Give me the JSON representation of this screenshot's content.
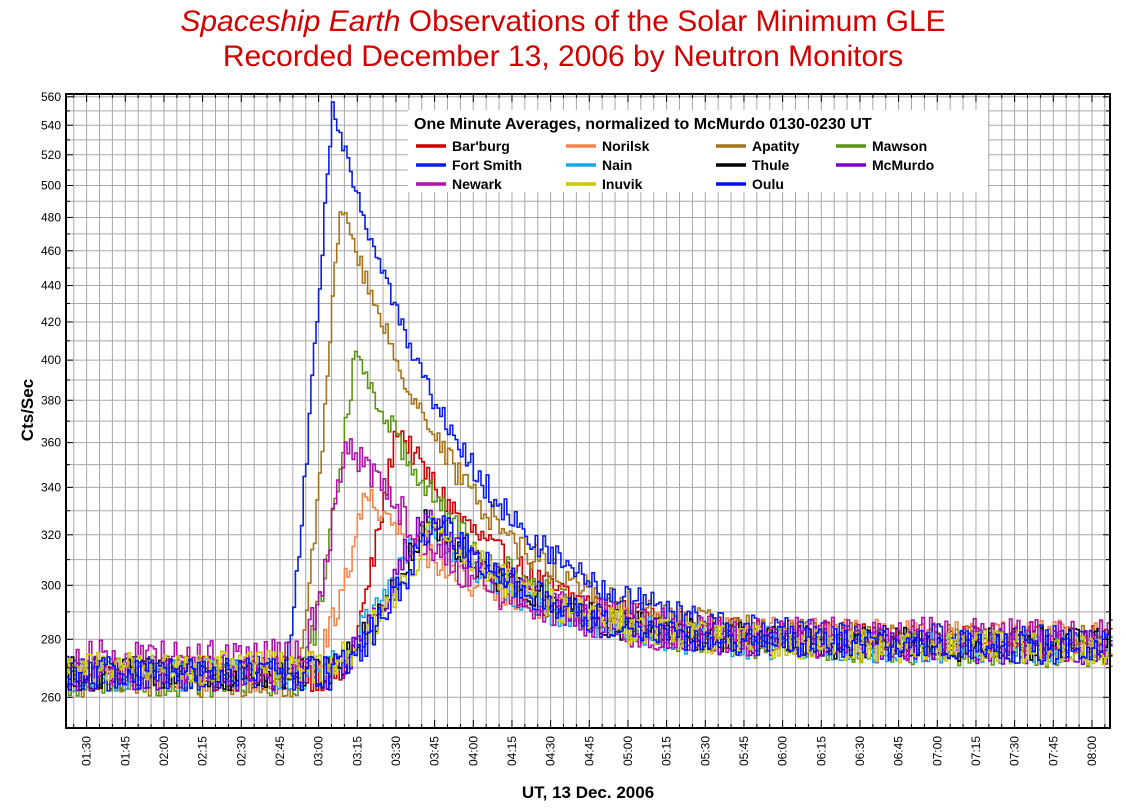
{
  "title": {
    "line1_italic": "Spaceship Earth",
    "line1_rest": " Observations of the Solar Minimum GLE",
    "line2": "Recorded December 13, 2006 by Neutron Monitors"
  },
  "chart_data": {
    "type": "line",
    "title": "Spaceship Earth Observations of the Solar Minimum GLE Recorded December 13, 2006 by Neutron Monitors",
    "xlabel": "UT, 13 Dec. 2006",
    "ylabel": "Cts/Sec",
    "xlim": [
      "01:22",
      "08:07"
    ],
    "ylim": [
      250,
      562
    ],
    "y_scale": "log",
    "grid": true,
    "legend_title": "One Minute Averages, normalized to McMurdo 0130-0230 UT",
    "legend_placement": "top-center",
    "x_ticks": [
      "01:30",
      "01:45",
      "02:00",
      "02:15",
      "02:30",
      "02:45",
      "03:00",
      "03:15",
      "03:30",
      "03:45",
      "04:00",
      "04:15",
      "04:30",
      "04:45",
      "05:00",
      "05:15",
      "05:30",
      "05:45",
      "06:00",
      "06:15",
      "06:30",
      "06:45",
      "07:00",
      "07:15",
      "07:30",
      "07:45",
      "08:00"
    ],
    "y_ticks": [
      260,
      280,
      300,
      320,
      340,
      360,
      380,
      400,
      420,
      440,
      460,
      480,
      500,
      520,
      540,
      560
    ],
    "series": [
      {
        "name": "Bar'burg",
        "color": "#cc0000",
        "baseline": 268,
        "onset": "03:08",
        "peak_time": "03:30",
        "peak": 368,
        "late": 279,
        "noise": 6
      },
      {
        "name": "Norilsk",
        "color": "#f5834a",
        "baseline": 268,
        "onset": "02:55",
        "peak_time": "03:18",
        "peak": 338,
        "late": 281,
        "noise": 6
      },
      {
        "name": "Apatity",
        "color": "#a8741a",
        "baseline": 266,
        "onset": "02:51",
        "peak_time": "03:08",
        "peak": 489,
        "late": 279,
        "noise": 6
      },
      {
        "name": "Mawson",
        "color": "#5c9416",
        "baseline": 266,
        "onset": "02:52",
        "peak_time": "03:14",
        "peak": 405,
        "late": 276,
        "noise": 6
      },
      {
        "name": "Fort Smith",
        "color": "#0a1ee0",
        "baseline": 268,
        "onset": "02:46",
        "peak_time": "03:05",
        "peak": 552,
        "late": 279,
        "noise": 6
      },
      {
        "name": "Nain",
        "color": "#1aa6e8",
        "baseline": 268,
        "onset": "02:57",
        "peak_time": "03:40",
        "peak": 326,
        "late": 277,
        "noise": 6
      },
      {
        "name": "Thule",
        "color": "#000000",
        "baseline": 268,
        "onset": "03:02",
        "peak_time": "03:42",
        "peak": 328,
        "late": 278,
        "noise": 6
      },
      {
        "name": "McMurdo",
        "color": "#7a00c8",
        "baseline": 268,
        "onset": "03:03",
        "peak_time": "03:40",
        "peak": 330,
        "late": 277,
        "noise": 6
      },
      {
        "name": "Newark",
        "color": "#b010a8",
        "baseline": 272,
        "onset": "02:52",
        "peak_time": "03:10",
        "peak": 364,
        "late": 280,
        "noise": 8
      },
      {
        "name": "Inuvik",
        "color": "#c8c800",
        "baseline": 270,
        "onset": "03:02",
        "peak_time": "03:45",
        "peak": 325,
        "late": 277,
        "noise": 6
      },
      {
        "name": "Oulu",
        "color": "#0010f0",
        "baseline": 268,
        "onset": "03:03",
        "peak_time": "03:45",
        "peak": 327,
        "late": 277,
        "noise": 6
      }
    ]
  }
}
